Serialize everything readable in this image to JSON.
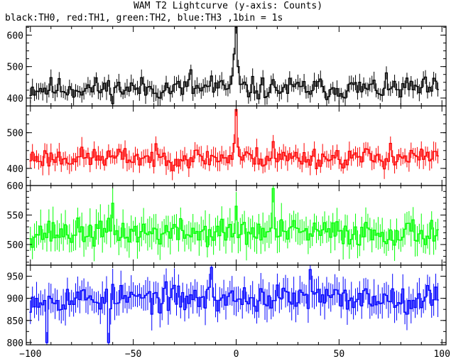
{
  "title": "WAM T2 Lightcurve (y-axis: Counts)",
  "subtitle": "black:TH0, red:TH1, green:TH2, blue:TH3 ,1bin = 1s",
  "chart_data": [
    {
      "type": "line",
      "xlim": [
        -102,
        102
      ],
      "ylim": [
        375,
        628
      ],
      "yticks": [
        400,
        500,
        600
      ],
      "color": "#000000",
      "x_start": -100,
      "x_end": 98,
      "base": 430,
      "noise": 35,
      "errbar": 22,
      "seed": 11,
      "spikes": [
        {
          "x": -2,
          "y": 470
        },
        {
          "x": -1,
          "y": 540
        },
        {
          "x": 0,
          "y": 625
        },
        {
          "x": 1,
          "y": 500
        },
        {
          "x": -22,
          "y": 490
        },
        {
          "x": -12,
          "y": 470
        }
      ]
    },
    {
      "type": "line",
      "xlim": [
        -102,
        102
      ],
      "ylim": [
        352,
        575
      ],
      "yticks": [
        400,
        500
      ],
      "color": "#ff0000",
      "x_start": -100,
      "x_end": 98,
      "base": 430,
      "noise": 28,
      "errbar": 22,
      "seed": 23,
      "spikes": [
        {
          "x": -1,
          "y": 470
        },
        {
          "x": 0,
          "y": 565
        },
        {
          "x": 1,
          "y": 460
        },
        {
          "x": 18,
          "y": 475
        },
        {
          "x": 75,
          "y": 470
        }
      ]
    },
    {
      "type": "line",
      "xlim": [
        -102,
        102
      ],
      "ylim": [
        465,
        600
      ],
      "yticks": [
        500,
        550,
        600
      ],
      "color": "#00ff00",
      "x_start": -100,
      "x_end": 98,
      "base": 520,
      "noise": 22,
      "errbar": 22,
      "seed": 37,
      "spikes": [
        {
          "x": 18,
          "y": 595
        },
        {
          "x": 0,
          "y": 565
        },
        {
          "x": -60,
          "y": 570
        }
      ]
    },
    {
      "type": "line",
      "xlim": [
        -102,
        102
      ],
      "ylim": [
        795,
        975
      ],
      "yticks": [
        800,
        850,
        900,
        950
      ],
      "color": "#0000ff",
      "x_start": -100,
      "x_end": 98,
      "base": 900,
      "noise": 30,
      "errbar": 30,
      "seed": 53,
      "spikes": [
        {
          "x": -12,
          "y": 970
        },
        {
          "x": 36,
          "y": 965
        },
        {
          "x": -92,
          "y": 800
        },
        {
          "x": -62,
          "y": 800
        }
      ]
    }
  ],
  "xticks": [
    -100,
    -50,
    0,
    50,
    100
  ]
}
